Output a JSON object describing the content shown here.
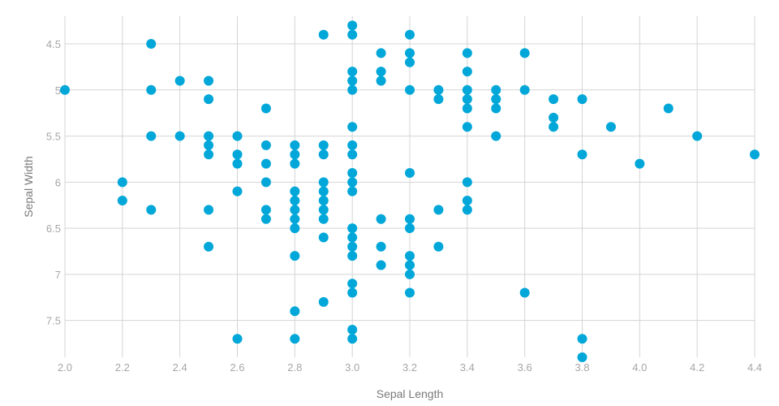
{
  "chart_data": {
    "type": "scatter",
    "xlabel": "Sepal Length",
    "ylabel": "Sepal Width",
    "xlim": [
      2.0,
      4.4
    ],
    "ylim": [
      4.2,
      7.9
    ],
    "y_inverted": true,
    "x_ticks": [
      "2.0",
      "2.2",
      "2.4",
      "2.6",
      "2.8",
      "3.0",
      "3.2",
      "3.4",
      "3.6",
      "3.8",
      "4.0",
      "4.2",
      "4.4"
    ],
    "y_ticks": [
      "4.5",
      "5",
      "5.5",
      "6",
      "6.5",
      "7",
      "7.5"
    ],
    "grid": true,
    "point_color": "#00a7d8",
    "points": [
      [
        2.0,
        5.0
      ],
      [
        2.2,
        6.0
      ],
      [
        2.2,
        6.2
      ],
      [
        2.3,
        4.5
      ],
      [
        2.3,
        5.0
      ],
      [
        2.3,
        5.5
      ],
      [
        2.3,
        6.3
      ],
      [
        2.4,
        4.9
      ],
      [
        2.4,
        5.5
      ],
      [
        2.5,
        4.9
      ],
      [
        2.5,
        5.1
      ],
      [
        2.5,
        5.5
      ],
      [
        2.5,
        5.6
      ],
      [
        2.5,
        5.7
      ],
      [
        2.5,
        6.3
      ],
      [
        2.5,
        6.7
      ],
      [
        2.6,
        5.5
      ],
      [
        2.6,
        5.7
      ],
      [
        2.6,
        5.8
      ],
      [
        2.6,
        6.1
      ],
      [
        2.6,
        7.7
      ],
      [
        2.7,
        5.2
      ],
      [
        2.7,
        5.6
      ],
      [
        2.7,
        5.8
      ],
      [
        2.7,
        6.0
      ],
      [
        2.7,
        6.3
      ],
      [
        2.7,
        6.4
      ],
      [
        2.8,
        5.6
      ],
      [
        2.8,
        5.7
      ],
      [
        2.8,
        5.8
      ],
      [
        2.8,
        6.1
      ],
      [
        2.8,
        6.2
      ],
      [
        2.8,
        6.3
      ],
      [
        2.8,
        6.4
      ],
      [
        2.8,
        6.5
      ],
      [
        2.8,
        6.8
      ],
      [
        2.8,
        7.4
      ],
      [
        2.8,
        7.7
      ],
      [
        2.9,
        4.4
      ],
      [
        2.9,
        5.6
      ],
      [
        2.9,
        5.7
      ],
      [
        2.9,
        6.0
      ],
      [
        2.9,
        6.1
      ],
      [
        2.9,
        6.2
      ],
      [
        2.9,
        6.3
      ],
      [
        2.9,
        6.4
      ],
      [
        2.9,
        6.6
      ],
      [
        2.9,
        7.3
      ],
      [
        3.0,
        4.3
      ],
      [
        3.0,
        4.4
      ],
      [
        3.0,
        4.8
      ],
      [
        3.0,
        4.9
      ],
      [
        3.0,
        5.0
      ],
      [
        3.0,
        5.4
      ],
      [
        3.0,
        5.6
      ],
      [
        3.0,
        5.7
      ],
      [
        3.0,
        5.9
      ],
      [
        3.0,
        6.0
      ],
      [
        3.0,
        6.1
      ],
      [
        3.0,
        6.5
      ],
      [
        3.0,
        6.6
      ],
      [
        3.0,
        6.7
      ],
      [
        3.0,
        6.8
      ],
      [
        3.0,
        7.1
      ],
      [
        3.0,
        7.2
      ],
      [
        3.0,
        7.6
      ],
      [
        3.0,
        7.7
      ],
      [
        3.1,
        4.6
      ],
      [
        3.1,
        4.8
      ],
      [
        3.1,
        4.9
      ],
      [
        3.1,
        6.4
      ],
      [
        3.1,
        6.7
      ],
      [
        3.1,
        6.9
      ],
      [
        3.2,
        4.4
      ],
      [
        3.2,
        4.6
      ],
      [
        3.2,
        4.7
      ],
      [
        3.2,
        5.0
      ],
      [
        3.2,
        5.9
      ],
      [
        3.2,
        6.4
      ],
      [
        3.2,
        6.5
      ],
      [
        3.2,
        6.8
      ],
      [
        3.2,
        6.9
      ],
      [
        3.2,
        7.0
      ],
      [
        3.2,
        7.2
      ],
      [
        3.3,
        5.0
      ],
      [
        3.3,
        5.1
      ],
      [
        3.3,
        6.3
      ],
      [
        3.3,
        6.7
      ],
      [
        3.4,
        4.6
      ],
      [
        3.4,
        4.8
      ],
      [
        3.4,
        5.0
      ],
      [
        3.4,
        5.1
      ],
      [
        3.4,
        5.2
      ],
      [
        3.4,
        5.4
      ],
      [
        3.4,
        6.0
      ],
      [
        3.4,
        6.2
      ],
      [
        3.4,
        6.3
      ],
      [
        3.5,
        5.0
      ],
      [
        3.5,
        5.1
      ],
      [
        3.5,
        5.2
      ],
      [
        3.5,
        5.5
      ],
      [
        3.6,
        4.6
      ],
      [
        3.6,
        5.0
      ],
      [
        3.6,
        7.2
      ],
      [
        3.7,
        5.1
      ],
      [
        3.7,
        5.3
      ],
      [
        3.7,
        5.4
      ],
      [
        3.8,
        5.1
      ],
      [
        3.8,
        5.7
      ],
      [
        3.8,
        7.7
      ],
      [
        3.8,
        7.9
      ],
      [
        3.9,
        5.4
      ],
      [
        4.0,
        5.8
      ],
      [
        4.1,
        5.2
      ],
      [
        4.2,
        5.5
      ],
      [
        4.4,
        5.7
      ]
    ]
  }
}
